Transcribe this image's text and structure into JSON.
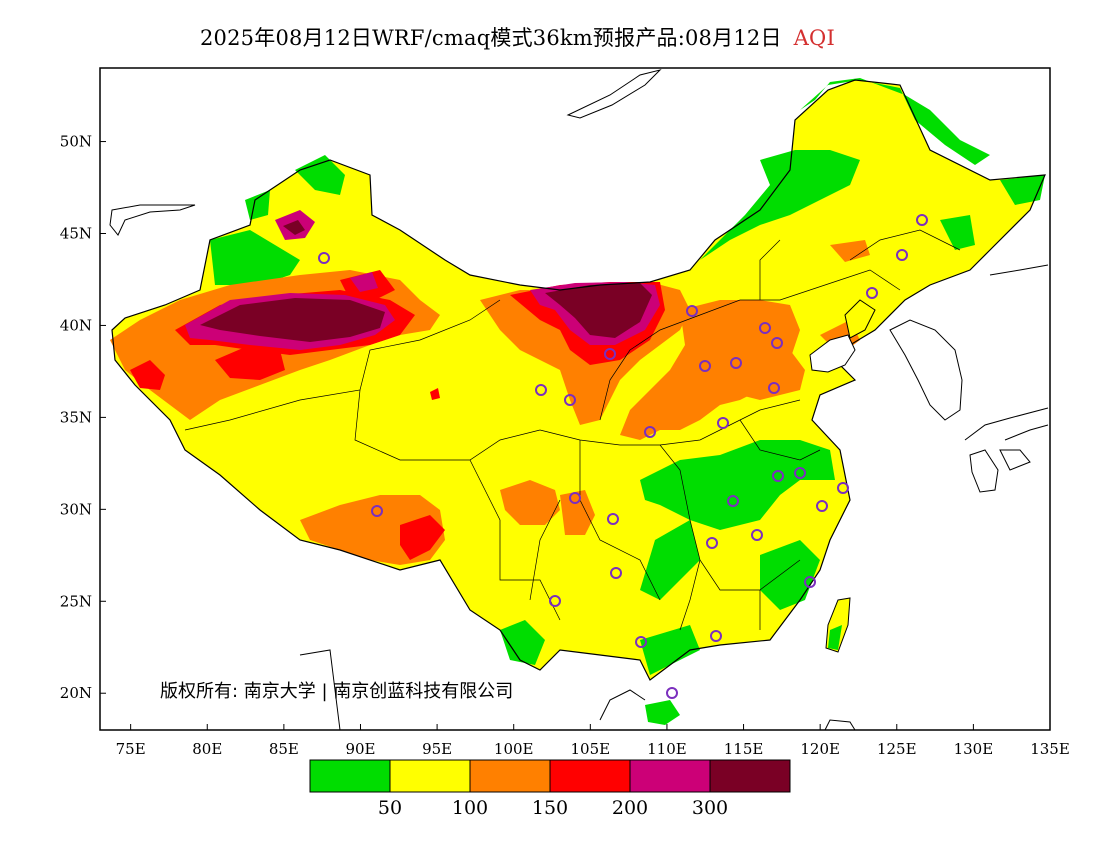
{
  "header": {
    "title": "2025年08月12日WRF/cmaq模式36km预报产品:08月12日",
    "variable": "AQI"
  },
  "map": {
    "x_axis_ticks": [
      "75E",
      "80E",
      "85E",
      "90E",
      "95E",
      "100E",
      "105E",
      "110E",
      "115E",
      "120E",
      "125E",
      "130E",
      "135E"
    ],
    "y_axis_ticks": [
      "50N",
      "45N",
      "40N",
      "35N",
      "30N",
      "25N",
      "20N"
    ],
    "lon_range": [
      73,
      135
    ],
    "lat_range": [
      18,
      54
    ],
    "copyright": "版权所有: 南京大学 | 南京创蓝科技有限公司"
  },
  "legend": {
    "colors": [
      "#00dd00",
      "#ffff00",
      "#ff8000",
      "#ff0000",
      "#cc0077",
      "#7a0025"
    ],
    "labels": [
      "50",
      "100",
      "150",
      "200",
      "300"
    ]
  },
  "stations_color": "#7b2fbe"
}
